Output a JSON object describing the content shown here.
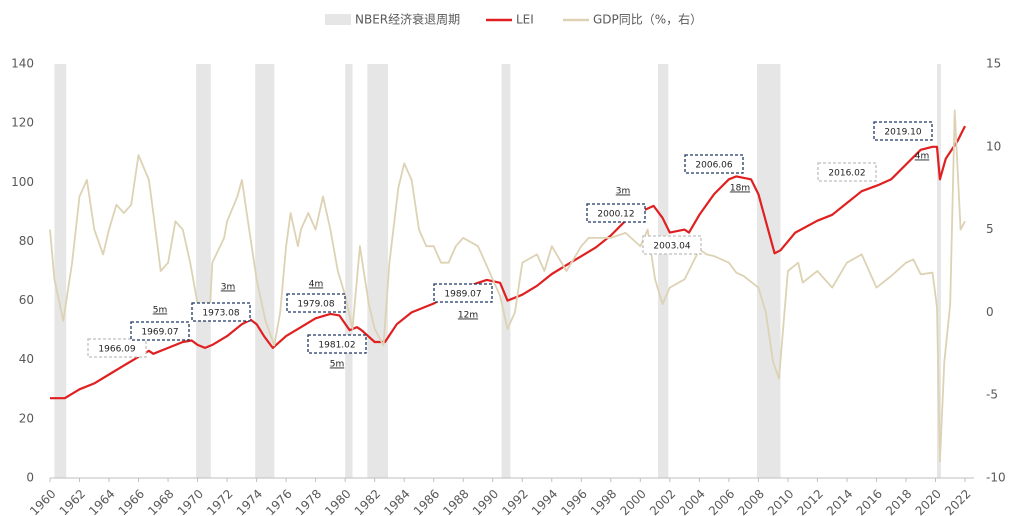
{
  "chart_data": {
    "type": "line",
    "xlim": [
      1960,
      2022
    ],
    "xticks": [
      1960,
      1962,
      1964,
      1966,
      1968,
      1970,
      1972,
      1974,
      1976,
      1978,
      1980,
      1982,
      1984,
      1986,
      1988,
      1990,
      1992,
      1994,
      1996,
      1998,
      2000,
      2002,
      2004,
      2006,
      2008,
      2010,
      2012,
      2014,
      2016,
      2018,
      2020,
      2022
    ],
    "ylim": [
      0,
      140
    ],
    "yticks": [
      0,
      20,
      40,
      60,
      80,
      100,
      120,
      140
    ],
    "y2lim": [
      -10,
      15
    ],
    "y2ticks": [
      -10,
      -5,
      0,
      5,
      10,
      15
    ],
    "recessions": {
      "name": "NBER经济衰退周期",
      "color": "#e6e6e6",
      "ranges": [
        [
          1960.3,
          1961.1
        ],
        [
          1969.9,
          1970.9
        ],
        [
          1973.9,
          1975.2
        ],
        [
          1980.0,
          1980.5
        ],
        [
          1981.5,
          1982.9
        ],
        [
          1990.6,
          1991.2
        ],
        [
          2001.2,
          2001.9
        ],
        [
          2007.9,
          2009.5
        ],
        [
          2020.1,
          2020.3
        ]
      ]
    },
    "series": [
      {
        "name": "LEI",
        "color": "#e02020",
        "x": [
          1960,
          1961,
          1962,
          1963,
          1964,
          1965,
          1966,
          1966.7,
          1967,
          1968,
          1969,
          1969.6,
          1970,
          1970.5,
          1971,
          1972,
          1973,
          1973.6,
          1974,
          1974.5,
          1975.1,
          1976,
          1977,
          1978,
          1979,
          1979.6,
          1980.3,
          1980.8,
          1981.1,
          1982,
          1982.7,
          1983.5,
          1984.5,
          1986,
          1987,
          1988,
          1989,
          1989.6,
          1990.5,
          1991,
          1992,
          1993,
          1994,
          1995,
          1996,
          1997,
          1998,
          1999,
          2000,
          2000.9,
          2001.5,
          2002,
          2003,
          2003.3,
          2004,
          2005,
          2006,
          2006.5,
          2007.5,
          2008,
          2009.1,
          2009.5,
          2010.5,
          2012,
          2013,
          2014,
          2015,
          2016.1,
          2017,
          2018,
          2019,
          2019.8,
          2020.1,
          2020.3,
          2020.7,
          2021.5,
          2022
        ],
        "values": [
          27,
          27,
          30,
          32,
          35,
          38,
          41,
          43,
          42,
          44,
          46,
          46.5,
          45,
          44,
          45,
          48,
          52,
          53.5,
          52,
          48,
          44,
          48,
          51,
          54,
          55.5,
          55,
          50,
          51,
          50,
          46,
          46,
          52,
          56,
          59,
          62,
          64,
          66,
          67,
          66,
          60,
          62,
          65,
          69,
          72,
          75,
          78,
          82,
          87,
          90,
          92,
          88,
          83,
          84,
          83,
          89,
          96,
          101,
          102,
          101,
          96,
          76,
          77,
          83,
          87,
          89,
          93,
          97,
          99,
          101,
          106,
          111,
          112,
          112,
          101,
          108,
          114,
          119
        ]
      },
      {
        "name": "GDP同比（%，右）",
        "color": "#ddd2b4",
        "axis": "y2",
        "x": [
          1960,
          1960.3,
          1960.9,
          1961.5,
          1962,
          1962.5,
          1963,
          1963.6,
          1964,
          1964.5,
          1965,
          1965.5,
          1966,
          1966.7,
          1967,
          1967.5,
          1968,
          1968.5,
          1969,
          1969.5,
          1970,
          1970.8,
          1971,
          1971.8,
          1972,
          1972.7,
          1973,
          1973.5,
          1974,
          1974.6,
          1975.2,
          1975.6,
          1976,
          1976.3,
          1976.8,
          1977,
          1977.5,
          1978,
          1978.5,
          1979,
          1979.5,
          1980,
          1980.5,
          1981,
          1981.6,
          1982,
          1982.6,
          1983,
          1983.6,
          1984,
          1984.5,
          1985,
          1985.5,
          1986,
          1986.5,
          1987,
          1987.5,
          1988,
          1989,
          1989.5,
          1990,
          1990.5,
          1991,
          1991.5,
          1992,
          1993,
          1993.5,
          1994,
          1995,
          1996,
          1996.5,
          1997,
          1998,
          1999,
          2000,
          2000.5,
          2001,
          2001.5,
          2002,
          2003,
          2004,
          2004.5,
          2005,
          2006,
          2006.5,
          2007,
          2008,
          2008.5,
          2009,
          2009.4,
          2010,
          2010.7,
          2011,
          2012,
          2013,
          2014,
          2015,
          2016,
          2017,
          2018,
          2018.5,
          2019,
          2019.8,
          2020.1,
          2020.3,
          2020.6,
          2021,
          2021.3,
          2021.7,
          2022
        ],
        "values": [
          5,
          2,
          -0.5,
          3,
          7,
          8,
          5,
          3.5,
          5,
          6.5,
          6,
          6.5,
          9.5,
          8,
          6,
          2.5,
          3,
          5.5,
          5,
          3,
          0.5,
          -0.5,
          3,
          4.5,
          5.5,
          7,
          8,
          5,
          2,
          -0.5,
          -2,
          0,
          4,
          6,
          4,
          5,
          6,
          5,
          7,
          5,
          2.5,
          1,
          -1,
          4,
          0.5,
          -1,
          -2,
          3,
          7.5,
          9,
          8,
          5,
          4,
          4,
          3,
          3,
          4,
          4.5,
          4,
          3,
          2,
          1,
          -1,
          0,
          3,
          3.5,
          2.5,
          4,
          2.5,
          4,
          4.5,
          4.5,
          4.5,
          4.8,
          4,
          5,
          2,
          0.5,
          1.5,
          2,
          3.8,
          3.5,
          3.4,
          3,
          2.4,
          2.2,
          1.5,
          0,
          -3,
          -4,
          2.5,
          3,
          1.8,
          2.5,
          1.5,
          3,
          3.5,
          1.5,
          2.2,
          3,
          3.2,
          2.3,
          2.4,
          0.3,
          -9,
          -3,
          0.5,
          12.2,
          5,
          5.5
        ]
      }
    ],
    "annotations": [
      {
        "text": "1966.09",
        "color": "#bfbfbf"
      },
      {
        "text": "1969.07",
        "note": "5m",
        "color": "#1f3864"
      },
      {
        "text": "1973.08",
        "note": "3m",
        "color": "#1f3864"
      },
      {
        "text": "1979.08",
        "note": "4m",
        "color": "#1f3864"
      },
      {
        "text": "1981.02",
        "note": "5m",
        "color": "#1f3864"
      },
      {
        "text": "1989.07",
        "note": "12m",
        "color": "#1f3864"
      },
      {
        "text": "2000.12",
        "note": "3m",
        "color": "#1f3864"
      },
      {
        "text": "2003.04",
        "color": "#bfbfbf"
      },
      {
        "text": "2006.06",
        "note": "18m",
        "color": "#1f3864"
      },
      {
        "text": "2016.02",
        "color": "#bfbfbf"
      },
      {
        "text": "2019.10",
        "note": "4m",
        "color": "#1f3864"
      }
    ]
  }
}
